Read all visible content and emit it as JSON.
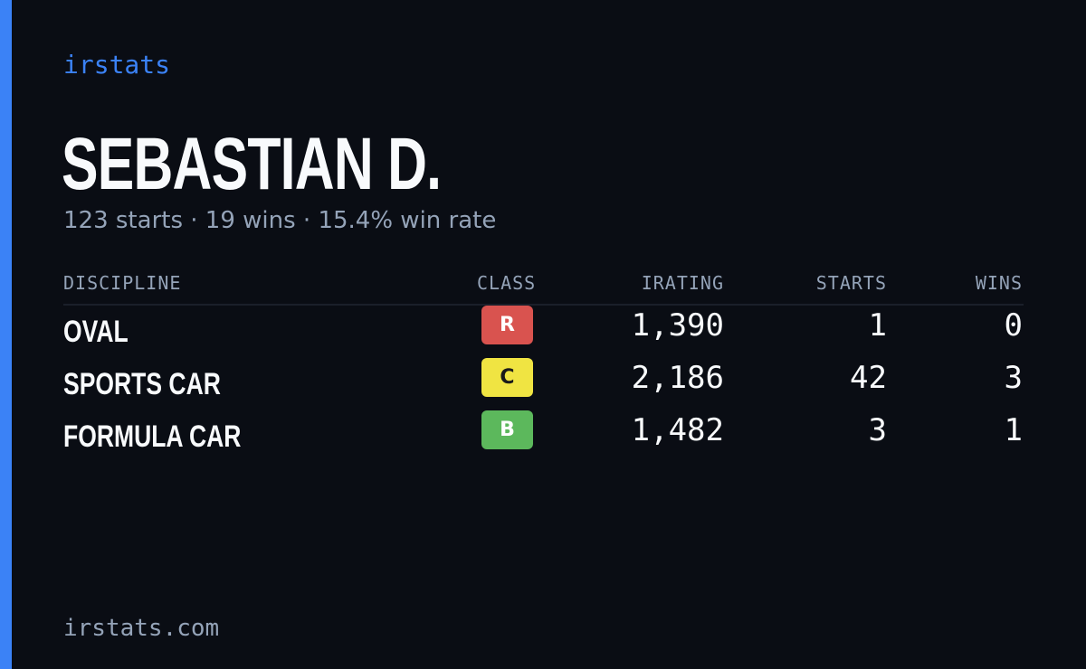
{
  "brand": "irstats",
  "driver": {
    "name": "SEBASTIAN D.",
    "summary": "123 starts · 19 wins · 15.4% win rate"
  },
  "table": {
    "headers": {
      "discipline": "DISCIPLINE",
      "class": "CLASS",
      "irating": "IRATING",
      "starts": "STARTS",
      "wins": "WINS"
    },
    "rows": [
      {
        "discipline": "OVAL",
        "class": "R",
        "class_color": "#d9534f",
        "class_text_color": "#ffffff",
        "irating": "1,390",
        "starts": "1",
        "wins": "0"
      },
      {
        "discipline": "SPORTS CAR",
        "class": "C",
        "class_color": "#f0e442",
        "class_text_color": "#1a1a1a",
        "irating": "2,186",
        "starts": "42",
        "wins": "3"
      },
      {
        "discipline": "FORMULA CAR",
        "class": "B",
        "class_color": "#5cb85c",
        "class_text_color": "#ffffff",
        "irating": "1,482",
        "starts": "3",
        "wins": "1"
      }
    ]
  },
  "footer": "irstats.com",
  "colors": {
    "accent": "#3b82f6",
    "background": "#0a0d14",
    "text": "#f8fafc",
    "muted": "#94a3b8"
  }
}
